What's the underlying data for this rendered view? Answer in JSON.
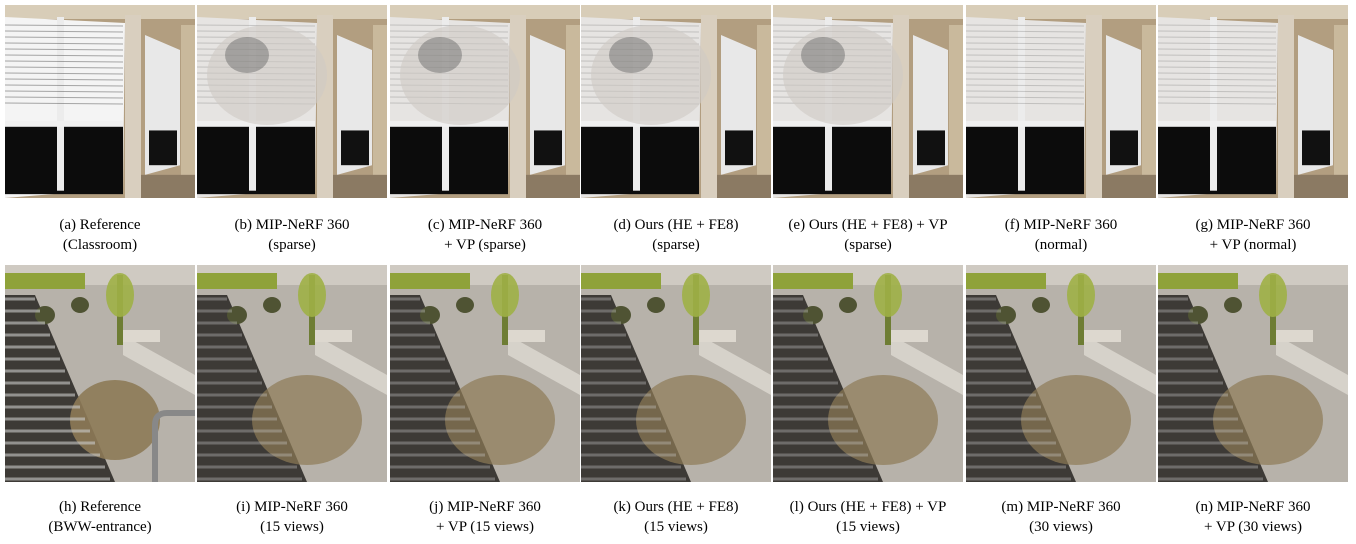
{
  "figure": {
    "rows": [
      {
        "panels": [
          {
            "caption": [
              "(a) Reference",
              "(Classroom)"
            ]
          },
          {
            "caption": [
              "(b) MIP-NeRF 360",
              "(sparse)"
            ]
          },
          {
            "caption": [
              "(c) MIP-NeRF 360",
              "+ VP (sparse)"
            ]
          },
          {
            "caption": [
              "(d) Ours (HE + FE8)",
              "(sparse)"
            ]
          },
          {
            "caption": [
              "(e) Ours (HE + FE8) + VP",
              "(sparse)"
            ]
          },
          {
            "caption": [
              "(f) MIP-NeRF 360",
              "(normal)"
            ]
          },
          {
            "caption": [
              "(g) MIP-NeRF 360",
              "+ VP (normal)"
            ]
          }
        ]
      },
      {
        "panels": [
          {
            "caption": [
              "(h) Reference",
              "(BWW-entrance)"
            ]
          },
          {
            "caption": [
              "(i) MIP-NeRF 360",
              "(15 views)"
            ]
          },
          {
            "caption": [
              "(j) MIP-NeRF 360",
              "+ VP (15 views)"
            ]
          },
          {
            "caption": [
              "(k) Ours (HE + FE8)",
              "(15 views)"
            ]
          },
          {
            "caption": [
              "(l) Ours (HE + FE8) + VP",
              "(15 views)"
            ]
          },
          {
            "caption": [
              "(m) MIP-NeRF 360",
              "(30 views)"
            ]
          },
          {
            "caption": [
              "(n) MIP-NeRF 360",
              "+ VP (30 views)"
            ]
          }
        ]
      }
    ]
  }
}
